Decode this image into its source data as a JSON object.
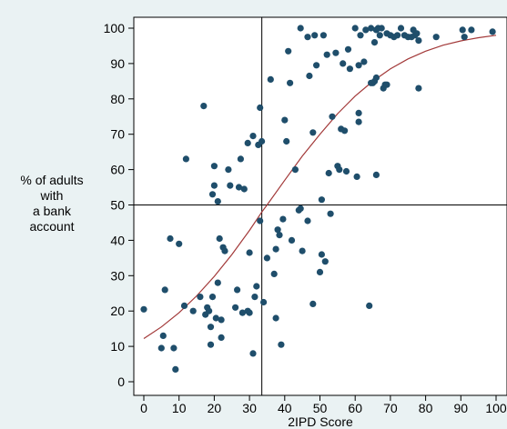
{
  "chart_data": {
    "type": "scatter",
    "title": "",
    "xlabel": "2IPD Score",
    "ylabel_lines": [
      "% of adults",
      "with",
      "a bank",
      "account"
    ],
    "xlim": [
      0,
      100
    ],
    "ylim": [
      0,
      100
    ],
    "xticks": [
      0,
      10,
      20,
      30,
      40,
      50,
      60,
      70,
      80,
      90,
      100
    ],
    "yticks": [
      0,
      10,
      20,
      30,
      40,
      50,
      60,
      70,
      80,
      90,
      100
    ],
    "grid": false,
    "reference_lines": {
      "vertical_x": 33.5,
      "horizontal_y": 50
    },
    "colors": {
      "points": "#1f4e6b",
      "curve": "#a23838",
      "background": "#eaf2f3",
      "plot_background": "#ffffff"
    },
    "series": [
      {
        "type": "scatter",
        "points": [
          [
            0,
            20.5
          ],
          [
            5,
            9.5
          ],
          [
            5.5,
            13
          ],
          [
            6,
            26
          ],
          [
            7.5,
            40.5
          ],
          [
            8.5,
            9.5
          ],
          [
            9,
            3.5
          ],
          [
            10,
            39
          ],
          [
            11.5,
            21.5
          ],
          [
            12,
            63
          ],
          [
            14,
            20
          ],
          [
            16,
            24
          ],
          [
            17,
            78
          ],
          [
            17.5,
            19
          ],
          [
            18,
            21
          ],
          [
            18.5,
            20
          ],
          [
            19,
            15.5
          ],
          [
            19,
            10.5
          ],
          [
            19.5,
            24
          ],
          [
            19.5,
            53
          ],
          [
            20,
            61
          ],
          [
            20,
            55.5
          ],
          [
            20.5,
            18
          ],
          [
            21,
            28
          ],
          [
            21,
            51
          ],
          [
            21.5,
            40.5
          ],
          [
            22,
            12.5
          ],
          [
            22,
            17.5
          ],
          [
            22.5,
            38
          ],
          [
            23,
            37
          ],
          [
            24,
            60
          ],
          [
            24.5,
            55.5
          ],
          [
            26,
            21
          ],
          [
            26.5,
            26
          ],
          [
            27,
            55
          ],
          [
            27.5,
            63
          ],
          [
            28,
            19.5
          ],
          [
            28.5,
            54.5
          ],
          [
            29.5,
            20
          ],
          [
            29.5,
            67.5
          ],
          [
            30,
            36.5
          ],
          [
            30,
            19.5
          ],
          [
            31,
            8
          ],
          [
            31,
            69.5
          ],
          [
            31.5,
            24
          ],
          [
            32,
            27
          ],
          [
            32.5,
            67
          ],
          [
            33,
            45.5
          ],
          [
            33.5,
            68
          ],
          [
            33,
            77.5
          ],
          [
            34,
            22.5
          ],
          [
            35,
            35
          ],
          [
            36,
            85.5
          ],
          [
            37,
            30.5
          ],
          [
            37.5,
            18
          ],
          [
            37.5,
            37.5
          ],
          [
            38,
            43
          ],
          [
            38.5,
            41.5
          ],
          [
            39,
            10.5
          ],
          [
            39.5,
            46
          ],
          [
            40,
            74
          ],
          [
            40.5,
            68
          ],
          [
            41,
            93.5
          ],
          [
            41.5,
            84.5
          ],
          [
            42,
            40
          ],
          [
            43,
            60
          ],
          [
            44,
            48.5
          ],
          [
            44.5,
            100
          ],
          [
            44.5,
            49
          ],
          [
            45,
            37
          ],
          [
            46.5,
            97.5
          ],
          [
            46.5,
            45.5
          ],
          [
            47,
            86.5
          ],
          [
            48,
            22
          ],
          [
            48,
            70.5
          ],
          [
            48.5,
            98
          ],
          [
            49,
            89.5
          ],
          [
            50,
            31
          ],
          [
            50.5,
            51.5
          ],
          [
            50.5,
            36
          ],
          [
            51,
            98
          ],
          [
            51.5,
            34
          ],
          [
            52,
            92.5
          ],
          [
            52.5,
            59
          ],
          [
            53,
            47.5
          ],
          [
            53.5,
            75
          ],
          [
            54.5,
            93
          ],
          [
            55,
            61
          ],
          [
            55.5,
            60
          ],
          [
            56,
            71.5
          ],
          [
            56.5,
            90
          ],
          [
            57,
            71
          ],
          [
            57.5,
            59.5
          ],
          [
            58,
            94
          ],
          [
            58.5,
            88.5
          ],
          [
            60,
            100
          ],
          [
            60.5,
            58
          ],
          [
            61,
            89.5
          ],
          [
            61,
            73.5
          ],
          [
            61,
            76
          ],
          [
            61.5,
            98
          ],
          [
            62.5,
            90.5
          ],
          [
            63,
            99.5
          ],
          [
            64,
            21.5
          ],
          [
            64.5,
            84.5
          ],
          [
            64.5,
            100
          ],
          [
            65,
            84.5
          ],
          [
            65.5,
            85
          ],
          [
            65.5,
            96
          ],
          [
            66,
            58.5
          ],
          [
            66,
            86
          ],
          [
            66,
            99.5
          ],
          [
            66.5,
            100
          ],
          [
            67,
            98
          ],
          [
            67.5,
            100
          ],
          [
            68,
            83
          ],
          [
            68.5,
            84
          ],
          [
            69,
            84
          ],
          [
            69,
            98.5
          ],
          [
            70,
            98
          ],
          [
            71,
            97.5
          ],
          [
            72,
            98
          ],
          [
            73,
            100
          ],
          [
            74,
            98
          ],
          [
            75,
            97.5
          ],
          [
            76,
            97.5
          ],
          [
            76.5,
            99.5
          ],
          [
            77,
            98
          ],
          [
            77.5,
            98.5
          ],
          [
            78,
            96.5
          ],
          [
            78,
            83
          ],
          [
            83,
            97.5
          ],
          [
            90.5,
            99.5
          ],
          [
            91,
            97.5
          ],
          [
            93,
            99.5
          ],
          [
            99,
            99
          ]
        ]
      },
      {
        "type": "line",
        "fit": "logistic",
        "curve_points": [
          [
            0,
            12.2
          ],
          [
            5,
            15.5
          ],
          [
            10,
            19.5
          ],
          [
            15,
            24.3
          ],
          [
            20,
            29.8
          ],
          [
            25,
            36
          ],
          [
            30,
            42.8
          ],
          [
            33.5,
            48
          ],
          [
            35,
            50
          ],
          [
            40,
            57
          ],
          [
            45,
            63.8
          ],
          [
            50,
            70
          ],
          [
            55,
            75.8
          ],
          [
            60,
            80.8
          ],
          [
            65,
            85
          ],
          [
            70,
            88.5
          ],
          [
            75,
            91.3
          ],
          [
            80,
            93.5
          ],
          [
            85,
            95.2
          ],
          [
            90,
            96.4
          ],
          [
            95,
            97.3
          ],
          [
            100,
            98
          ]
        ]
      }
    ]
  }
}
